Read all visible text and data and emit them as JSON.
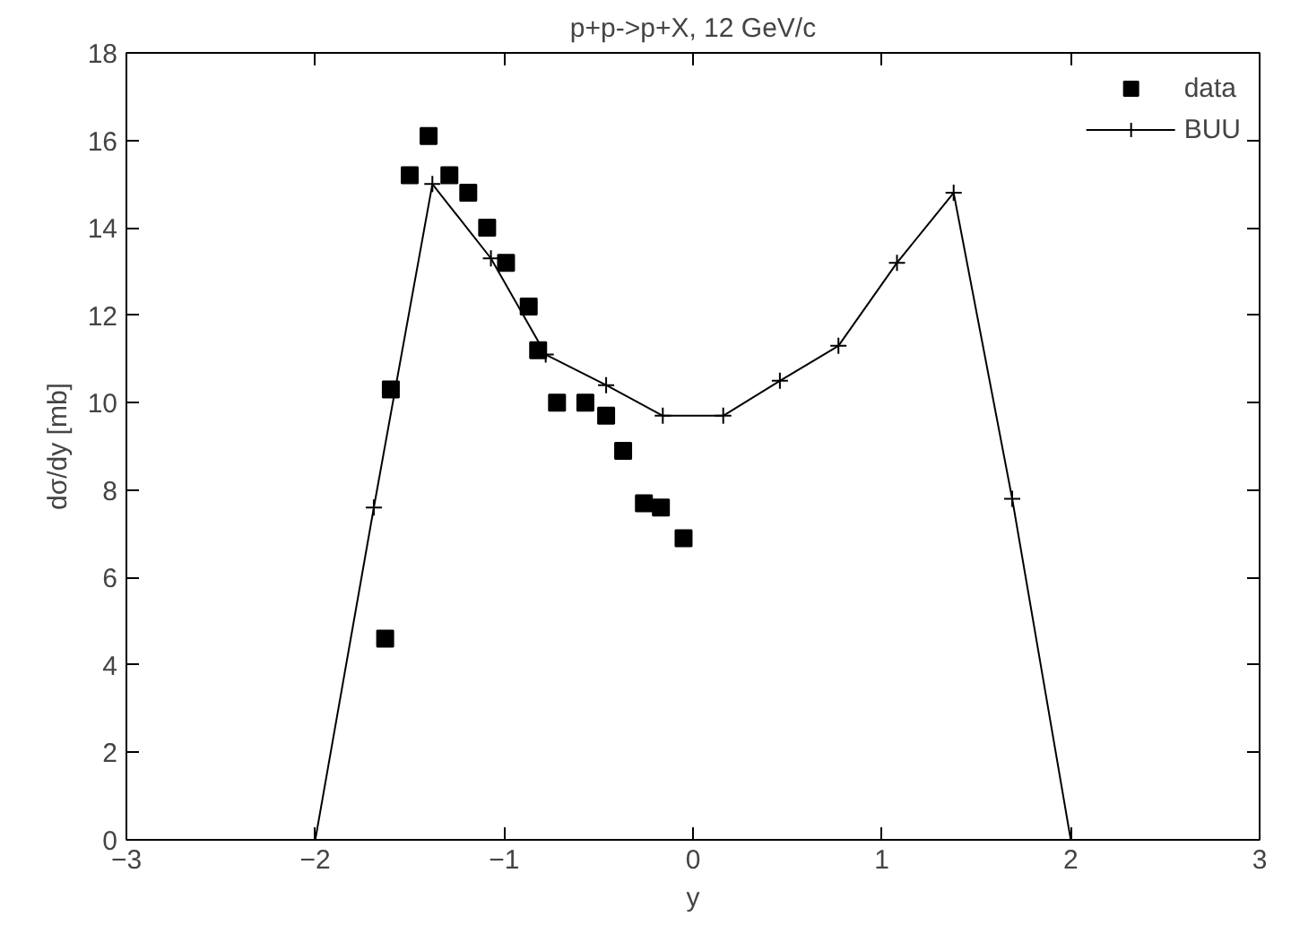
{
  "chart_data": {
    "type": "scatter",
    "title": "p+p->p+X, 12 GeV/c",
    "xlabel": "y",
    "ylabel": "dσ/dy [mb]",
    "xlim": [
      -3,
      3
    ],
    "ylim": [
      0,
      18
    ],
    "xticks": [
      -3,
      -2,
      -1,
      0,
      1,
      2,
      3
    ],
    "yticks": [
      0,
      2,
      4,
      6,
      8,
      10,
      12,
      14,
      16,
      18
    ],
    "grid": false,
    "legend": "top right",
    "series": [
      {
        "name": "data",
        "marker": "square",
        "color": "#000000",
        "x": [
          -1.63,
          -1.6,
          -1.5,
          -1.4,
          -1.29,
          -1.19,
          -1.09,
          -0.99,
          -0.87,
          -0.82,
          -0.72,
          -0.57,
          -0.46,
          -0.37,
          -0.26,
          -0.17,
          -0.05
        ],
        "values": [
          4.6,
          10.3,
          15.2,
          16.1,
          15.2,
          14.8,
          14.0,
          13.2,
          12.2,
          11.2,
          10.0,
          10.0,
          9.7,
          8.9,
          7.7,
          7.6,
          6.9
        ]
      },
      {
        "name": "BUU",
        "type": "line",
        "marker": "cross",
        "line_style": "solid",
        "color": "#000000",
        "x": [
          -2.0,
          -1.69,
          -1.38,
          -1.07,
          -0.78,
          -0.46,
          -0.16,
          0.16,
          0.46,
          0.77,
          1.08,
          1.38,
          1.69,
          2.0
        ],
        "values": [
          0,
          7.6,
          15.0,
          13.3,
          11.1,
          10.4,
          9.7,
          9.7,
          10.5,
          11.3,
          13.2,
          14.8,
          7.8,
          0
        ]
      }
    ]
  }
}
